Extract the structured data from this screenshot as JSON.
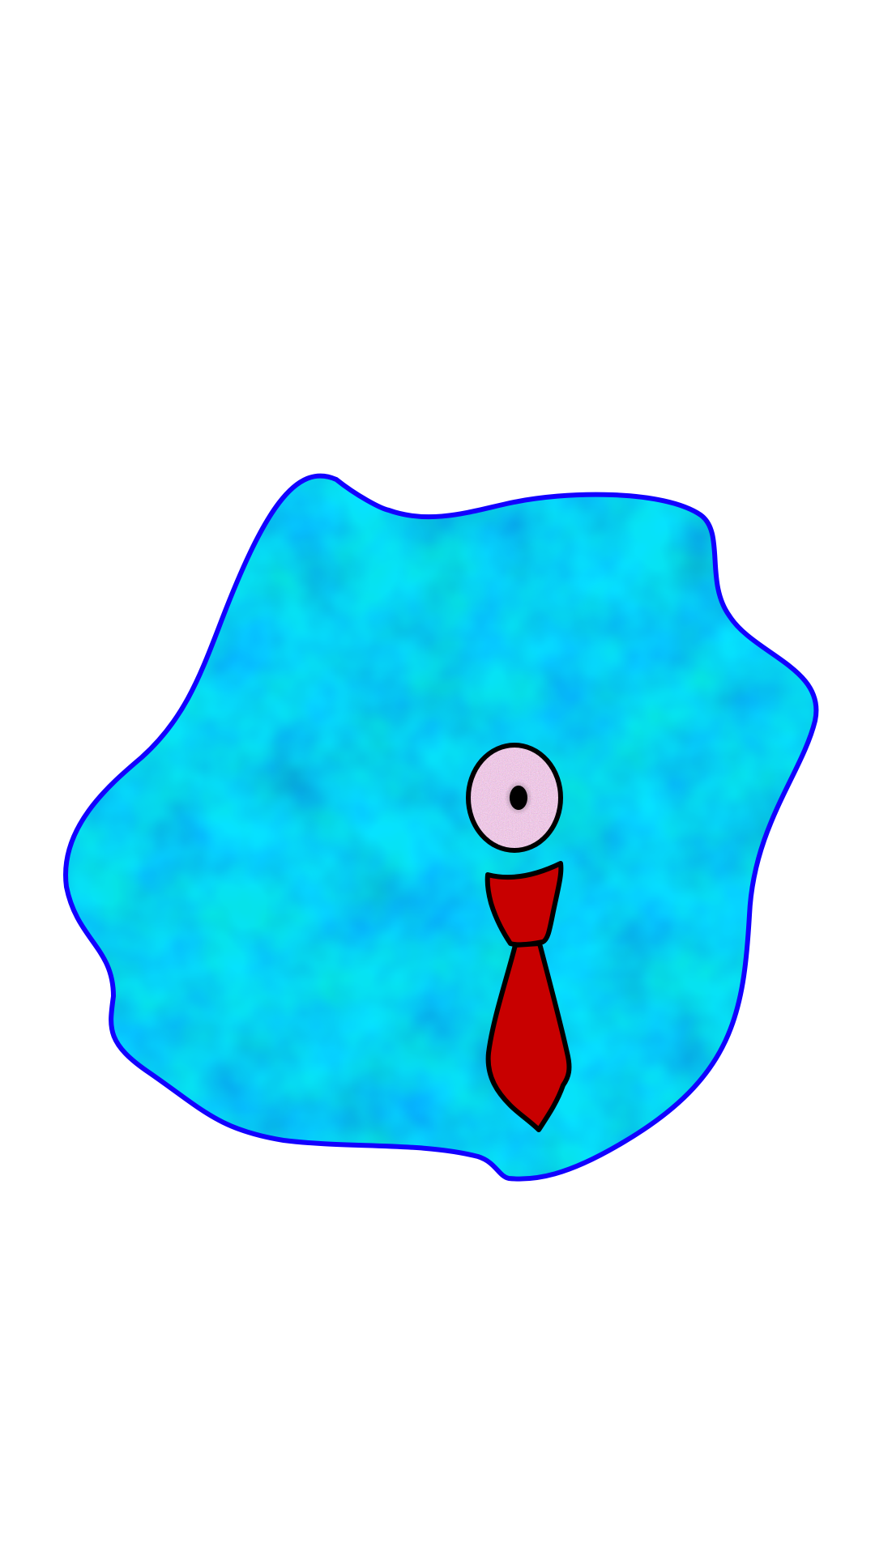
{
  "scene": {
    "background_color": "#ffffff",
    "character": {
      "kind": "blob-creature",
      "body": {
        "fill_colors": [
          "#1a8cff",
          "#10c8d8",
          "#14d8a8",
          "#0f6fe6"
        ],
        "outline_color": "#1200ff"
      },
      "eye": {
        "iris_colors": [
          "#c98ab6",
          "#d26fc7",
          "#b9a08a",
          "#9a86d6"
        ],
        "pupil_color": "#000000",
        "outline_color": "#000000"
      },
      "necktie": {
        "fill_color": "#c80000",
        "outline_color": "#000000"
      }
    }
  }
}
